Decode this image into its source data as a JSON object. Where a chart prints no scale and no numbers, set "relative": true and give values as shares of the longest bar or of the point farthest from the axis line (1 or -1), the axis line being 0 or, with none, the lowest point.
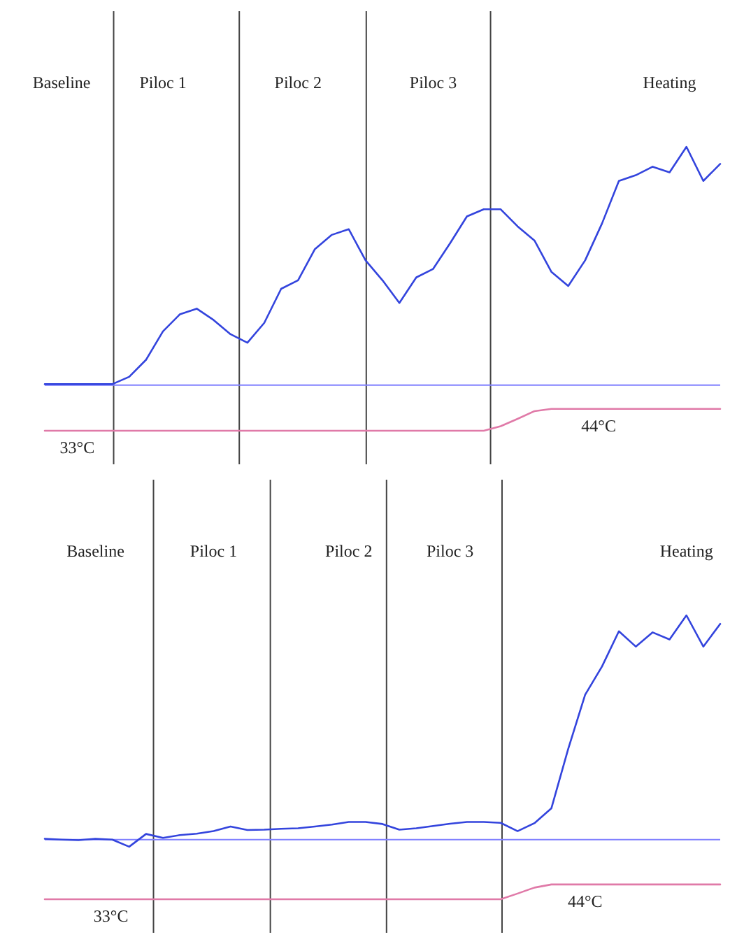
{
  "chart_data": [
    {
      "type": "line",
      "relative": true,
      "tick_labels": "x",
      "categories": [
        null,
        "Baseline",
        null,
        null,
        null,
        null,
        null,
        "Piloc 1",
        null,
        null,
        null,
        null,
        null,
        null,
        null,
        "Piloc 2",
        null,
        null,
        null,
        null,
        null,
        null,
        null,
        "Piloc 3",
        null,
        null,
        null,
        null,
        null,
        null,
        null,
        null,
        null,
        null,
        null,
        null,
        null,
        "Heating",
        null,
        null,
        null
      ],
      "series": [
        {
          "color": "#3344dd",
          "values": [
            0.164,
            0.164,
            0.164,
            0.164,
            0.164,
            0.19,
            0.25,
            0.35,
            0.41,
            0.43,
            0.39,
            0.34,
            0.31,
            0.38,
            0.5,
            0.53,
            0.64,
            0.69,
            0.71,
            0.6,
            0.53,
            0.45,
            0.54,
            0.57,
            0.66,
            0.755,
            0.78,
            0.78,
            0.72,
            0.67,
            0.56,
            0.51,
            0.6,
            0.73,
            0.88,
            0.9,
            0.93,
            0.91,
            1,
            0.88,
            0.94
          ]
        },
        {
          "color": "#e07aa8",
          "values": [
            0,
            0,
            0,
            0,
            0,
            0,
            0,
            0,
            0,
            0,
            0,
            0,
            0,
            0,
            0,
            0,
            0,
            0,
            0,
            0,
            0,
            0,
            0,
            0,
            0,
            0,
            0,
            0.016,
            0.042,
            0.069,
            0.077,
            0.077,
            0.077,
            0.077,
            0.077,
            0.077,
            0.077,
            0.077,
            0.077,
            0.077,
            0.077
          ]
        }
      ],
      "ref_lines": [
        {
          "axis": "y",
          "value": 0.161,
          "color": "#8080ff"
        }
      ],
      "annotations": [
        {
          "text": "33°C",
          "y": 0
        },
        {
          "text": "44°C",
          "y": 0.077
        }
      ]
    },
    {
      "type": "line",
      "relative": true,
      "tick_labels": "x",
      "categories": [
        null,
        null,
        null,
        "Baseline",
        null,
        null,
        null,
        null,
        null,
        null,
        "Piloc 1",
        null,
        null,
        null,
        null,
        null,
        null,
        null,
        "Piloc 2",
        null,
        null,
        null,
        null,
        null,
        "Piloc 3",
        null,
        null,
        null,
        null,
        null,
        null,
        null,
        null,
        null,
        null,
        null,
        null,
        null,
        "Heating",
        null,
        null
      ],
      "series": [
        {
          "color": "#3344dd",
          "values": [
            0.213,
            0.21,
            0.208,
            0.213,
            0.21,
            0.185,
            0.23,
            0.216,
            0.226,
            0.231,
            0.24,
            0.256,
            0.244,
            0.245,
            0.248,
            0.25,
            0.256,
            0.263,
            0.272,
            0.272,
            0.265,
            0.245,
            0.25,
            0.258,
            0.266,
            0.272,
            0.272,
            0.269,
            0.24,
            0.268,
            0.32,
            0.53,
            0.72,
            0.82,
            0.944,
            0.89,
            0.94,
            0.915,
            1,
            0.89,
            0.97
          ]
        },
        {
          "color": "#e07aa8",
          "values": [
            0,
            0,
            0,
            0,
            0,
            0,
            0,
            0,
            0,
            0,
            0,
            0,
            0,
            0,
            0,
            0,
            0,
            0,
            0,
            0,
            0,
            0,
            0,
            0,
            0,
            0,
            0,
            0,
            0.02,
            0.041,
            0.052,
            0.052,
            0.052,
            0.052,
            0.052,
            0.052,
            0.052,
            0.052,
            0.052,
            0.052,
            0.052
          ]
        }
      ],
      "ref_lines": [
        {
          "axis": "y",
          "value": 0.21,
          "color": "#8080ff"
        }
      ],
      "annotations": [
        {
          "text": "33°C",
          "y": 0
        },
        {
          "text": "44°C",
          "y": 0.052
        }
      ]
    }
  ]
}
